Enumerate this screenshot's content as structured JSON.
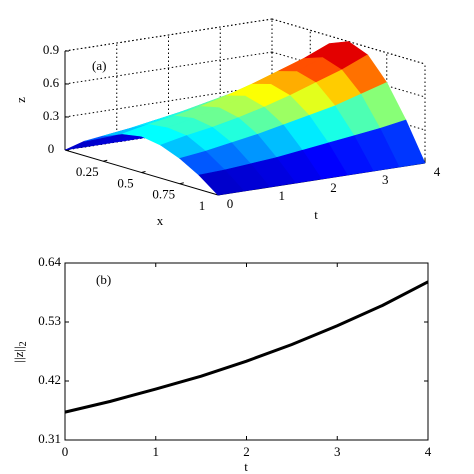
{
  "chart_data": [
    {
      "type": "surface",
      "panel_label": "(a)",
      "xlabel": "x",
      "ylabel": "t",
      "zlabel": "z",
      "x": [
        0,
        0.125,
        0.25,
        0.375,
        0.5,
        0.625,
        0.75,
        0.875,
        1
      ],
      "y": [
        0,
        0.5,
        1,
        1.5,
        2,
        2.5,
        3,
        3.5,
        4
      ],
      "z": [
        [
          0,
          0.13,
          0.23,
          0.3,
          0.33,
          0.3,
          0.23,
          0.13,
          0
        ],
        [
          0,
          0.14,
          0.26,
          0.35,
          0.37,
          0.35,
          0.26,
          0.14,
          0
        ],
        [
          0,
          0.16,
          0.3,
          0.39,
          0.42,
          0.39,
          0.3,
          0.16,
          0
        ],
        [
          0,
          0.18,
          0.34,
          0.44,
          0.48,
          0.44,
          0.34,
          0.18,
          0
        ],
        [
          0,
          0.21,
          0.39,
          0.5,
          0.55,
          0.5,
          0.39,
          0.21,
          0
        ],
        [
          0,
          0.24,
          0.44,
          0.57,
          0.62,
          0.57,
          0.44,
          0.24,
          0
        ],
        [
          0,
          0.27,
          0.49,
          0.65,
          0.7,
          0.65,
          0.49,
          0.27,
          0
        ],
        [
          0,
          0.3,
          0.56,
          0.73,
          0.79,
          0.73,
          0.56,
          0.3,
          0
        ],
        [
          0,
          0.34,
          0.63,
          0.83,
          0.9,
          0.83,
          0.63,
          0.34,
          0
        ]
      ],
      "xlim": [
        0,
        1
      ],
      "ylim": [
        0,
        4
      ],
      "zlim": [
        0,
        0.9
      ],
      "xticks": [
        0.25,
        0.5,
        0.75,
        1
      ],
      "yticks": [
        0,
        1,
        2,
        3,
        4
      ],
      "zticks": [
        0,
        0.3,
        0.6,
        0.9
      ],
      "colormap": "jet",
      "grid": true
    },
    {
      "type": "line",
      "panel_label": "(b)",
      "xlabel": "t",
      "ylabel": "||z||",
      "ylabel_subscript": "2",
      "x": [
        0,
        0.5,
        1,
        1.5,
        2,
        2.5,
        3,
        3.5,
        4
      ],
      "values": [
        0.362,
        0.382,
        0.405,
        0.429,
        0.457,
        0.488,
        0.523,
        0.561,
        0.605
      ],
      "color": "#000000",
      "xlim": [
        0,
        4
      ],
      "ylim": [
        0.31,
        0.64
      ],
      "xticks": [
        0,
        1,
        2,
        3,
        4
      ],
      "yticks": [
        0.31,
        0.42,
        0.53,
        0.64
      ]
    }
  ]
}
